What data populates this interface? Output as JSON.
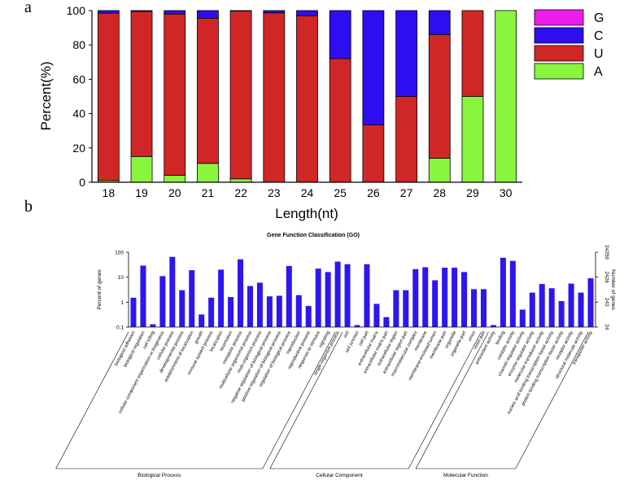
{
  "panel_labels": {
    "a": "a",
    "b": "b"
  },
  "chart_data": [
    {
      "type": "bar",
      "stacked": true,
      "title": "",
      "xlabel": "Length(nt)",
      "ylabel": "Percent(%)",
      "ylim": [
        0,
        100
      ],
      "yticks": [
        0,
        20,
        40,
        60,
        80,
        100
      ],
      "categories": [
        "18",
        "19",
        "20",
        "21",
        "22",
        "23",
        "24",
        "25",
        "26",
        "27",
        "28",
        "29",
        "30"
      ],
      "series": [
        {
          "name": "A",
          "color": "#88f53c",
          "values": [
            1,
            15,
            4,
            11,
            2,
            0,
            0,
            0,
            0,
            0,
            14,
            50,
            100
          ]
        },
        {
          "name": "U",
          "color": "#d12626",
          "values": [
            97.5,
            84.5,
            94,
            84.5,
            97.7,
            98.7,
            97,
            72,
            33.5,
            50,
            72,
            50,
            0
          ]
        },
        {
          "name": "C",
          "color": "#2e0ef0",
          "values": [
            1.5,
            0.5,
            2,
            4.5,
            0.3,
            1.3,
            3,
            28,
            66.5,
            50,
            14,
            0,
            0
          ]
        },
        {
          "name": "G",
          "color": "#ec1de8",
          "values": [
            0,
            0,
            0,
            0,
            0,
            0,
            0,
            0,
            0,
            0,
            0,
            0,
            0
          ]
        }
      ],
      "legend": {
        "placement": "top-right",
        "order": [
          "G",
          "C",
          "U",
          "A"
        ]
      }
    },
    {
      "type": "bar",
      "title": "Gene Function Classification (GO)",
      "ylabel": "Percent of genes",
      "y2label": "Number of genes",
      "yscale": "log",
      "ylim": [
        0.1,
        100
      ],
      "yticks": [
        "0.1",
        "1",
        "10",
        "100"
      ],
      "y2ticks": [
        "24",
        "243",
        "2426",
        "24259"
      ],
      "color": "#2d16f0",
      "categories": [
        "biological adhesion",
        "biological regulation",
        "cell killing",
        "cellular component organization or biogenesis",
        "cellular process",
        "developmental process",
        "establishment of localization",
        "growth",
        "immune system process",
        "localization",
        "locomotion",
        "metabolic process",
        "multicellular organismal process",
        "multi-organism process",
        "negative regulation of biological process",
        "positive regulation of biological process",
        "regulation of biological process",
        "reproduction",
        "reproductive process",
        "response to stimulus",
        "signaling",
        "single-organism process",
        "cell",
        "cell junction",
        "cell part",
        "extracellular matrix",
        "extracellular matrix part",
        "extracellular region",
        "extracellular region part",
        "macromolecular complex",
        "membrane",
        "membrane-enclosed lumen",
        "membrane part",
        "organelle",
        "organelle part",
        "virion",
        "virion part",
        "antioxidant activity",
        "binding",
        "catalytic activity",
        "channel regulator activity",
        "enzyme regulator activity",
        "molecular transducer activity",
        "nucleic acid binding transcription factor activity",
        "protein binding transcription factor activity",
        "receptor activity",
        "structural molecule activity",
        "transporter activity"
      ],
      "values": [
        1.5,
        29,
        0.13,
        11,
        65,
        3,
        19,
        0.32,
        1.5,
        20,
        1.6,
        52,
        4.4,
        6,
        1.7,
        1.8,
        28,
        1.9,
        0.7,
        22,
        16,
        42,
        33,
        0.12,
        33,
        0.85,
        0.25,
        3,
        3,
        21,
        25,
        7.5,
        24,
        24,
        16,
        3.3,
        3.3,
        0.12,
        60,
        45,
        0.5,
        2.4,
        5.3,
        3.6,
        1.1,
        5.5,
        2.4,
        9
      ],
      "groups": [
        {
          "label": "Biological Process",
          "start": 0,
          "end": 21
        },
        {
          "label": "Cellular Component",
          "start": 22,
          "end": 36
        },
        {
          "label": "Molecular Function",
          "start": 37,
          "end": 47
        }
      ]
    }
  ]
}
